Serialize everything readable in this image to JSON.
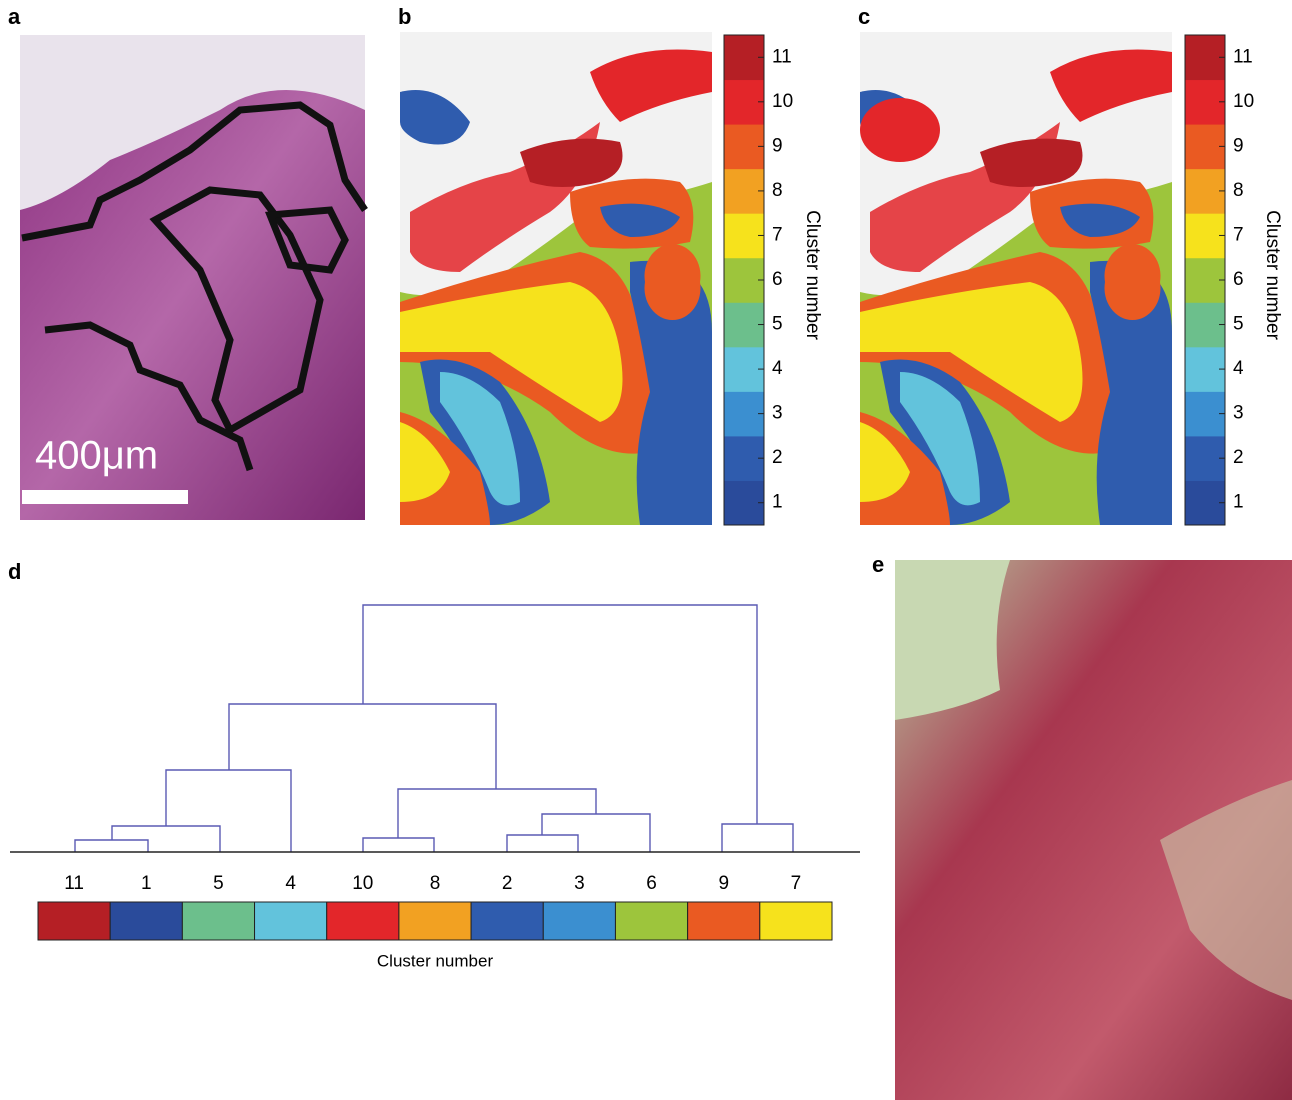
{
  "panels": {
    "a": {
      "label": "a",
      "scale_bar": "400μm"
    },
    "b": {
      "label": "b",
      "colorbar": {
        "title": "Cluster number",
        "ticks": [
          1,
          2,
          3,
          4,
          5,
          6,
          7,
          8,
          9,
          10,
          11
        ]
      }
    },
    "c": {
      "label": "c",
      "colorbar": {
        "title": "Cluster number",
        "ticks": [
          1,
          2,
          3,
          4,
          5,
          6,
          7,
          8,
          9,
          10,
          11
        ]
      }
    },
    "d": {
      "label": "d",
      "leaves": [
        "11",
        "1",
        "5",
        "4",
        "10",
        "8",
        "2",
        "3",
        "6",
        "9",
        "7"
      ],
      "xlabel": "Cluster number"
    },
    "e": {
      "label": "e"
    }
  },
  "cluster_colors": [
    "#2a4b9b",
    "#2f5cae",
    "#3b8fd0",
    "#62c3dc",
    "#6cbf8c",
    "#9dc53c",
    "#f6e21c",
    "#f2a122",
    "#ea5a22",
    "#e3262a",
    "#b51f25"
  ]
}
